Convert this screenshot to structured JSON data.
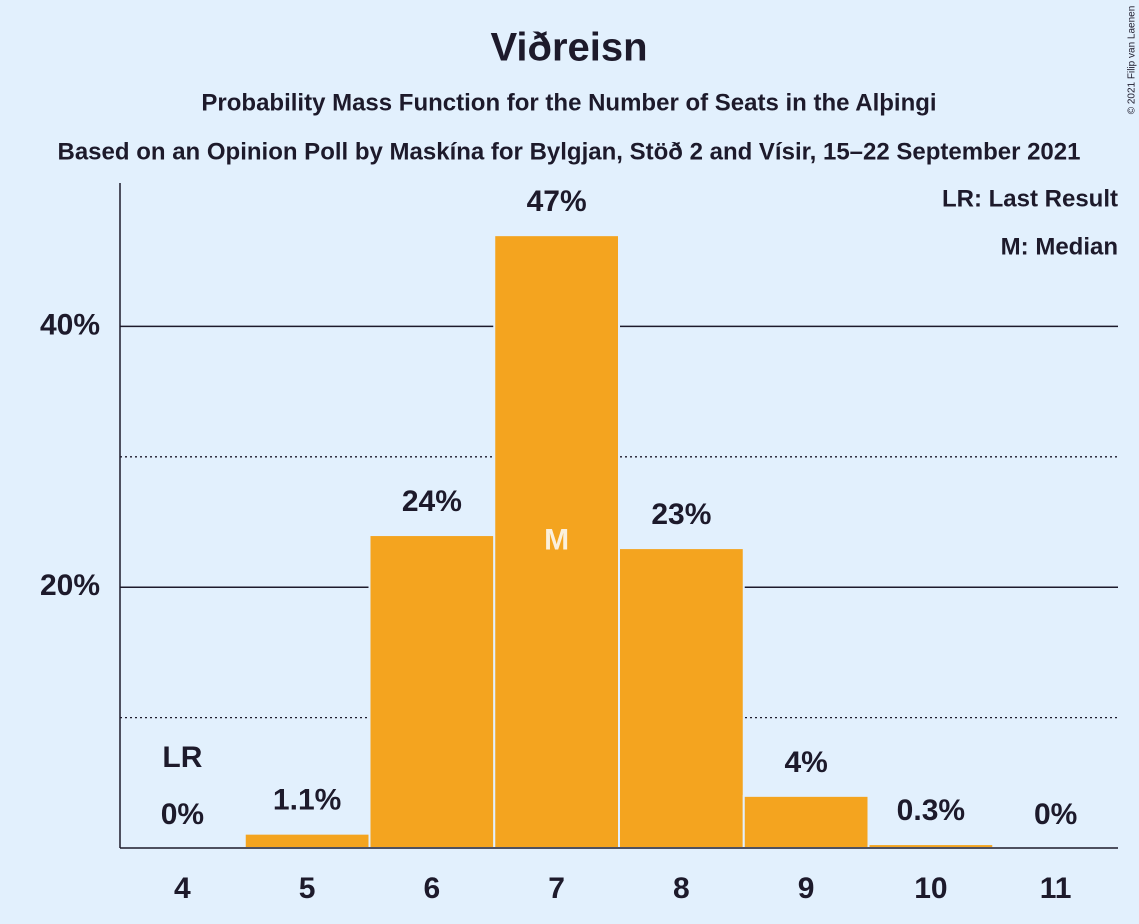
{
  "chart_data": {
    "type": "bar",
    "title": "Viðreisn",
    "subtitle": "Probability Mass Function for the Number of Seats in the Alþingi",
    "subtitle2": "Based on an Opinion Poll by Maskína for Bylgjan, Stöð 2 and Vísir, 15–22 September 2021",
    "copyright": "© 2021 Filip van Laenen",
    "categories": [
      "4",
      "5",
      "6",
      "7",
      "8",
      "9",
      "10",
      "11"
    ],
    "values": [
      0,
      1.1,
      24,
      47,
      23,
      4,
      0.3,
      0
    ],
    "value_labels": [
      "0%",
      "1.1%",
      "24%",
      "47%",
      "23%",
      "4%",
      "0.3%",
      "0%"
    ],
    "color": "#f4a41f",
    "ylim": [
      0,
      51
    ],
    "yticks": [
      {
        "value": 20,
        "label": "20%"
      },
      {
        "value": 40,
        "label": "40%"
      }
    ],
    "minor_yticks": [
      10,
      30
    ],
    "grid": true,
    "markers": [
      {
        "category": "4",
        "label": "LR",
        "place": "above-label"
      },
      {
        "category": "7",
        "label": "M",
        "place": "inside"
      }
    ],
    "legend": [
      "LR: Last Result",
      "M: Median"
    ],
    "legend_position": "upper right"
  }
}
